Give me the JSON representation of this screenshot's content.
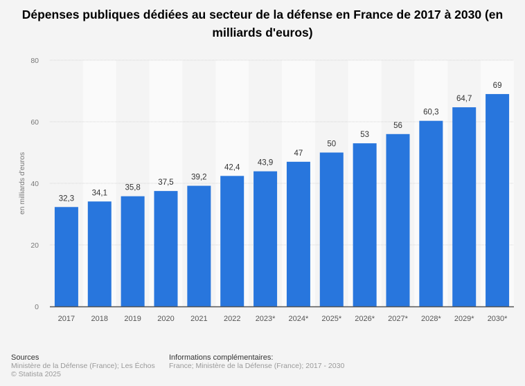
{
  "chart_data": {
    "type": "bar",
    "title": "Dépenses publiques dédiées au secteur de la défense en France de 2017 à 2030 (en milliards d'euros)",
    "xlabel": "",
    "ylabel": "en milliards d'euros",
    "ylim": [
      0,
      80
    ],
    "yticks": [
      0,
      20,
      40,
      60,
      80
    ],
    "grid": true,
    "categories": [
      "2017",
      "2018",
      "2019",
      "2020",
      "2021",
      "2022",
      "2023*",
      "2024*",
      "2025*",
      "2026*",
      "2027*",
      "2028*",
      "2029*",
      "2030*"
    ],
    "values": [
      32.3,
      34.1,
      35.8,
      37.5,
      39.2,
      42.4,
      43.9,
      47,
      50,
      53,
      56,
      60.3,
      64.7,
      69
    ],
    "value_labels": [
      "32,3",
      "34,1",
      "35,8",
      "37,5",
      "39,2",
      "42,4",
      "43,9",
      "47",
      "50",
      "53",
      "56",
      "60,3",
      "64,7",
      "69"
    ],
    "bar_color": "#2876dd"
  },
  "title_line1": "Dépenses publiques dédiées au secteur de la défense en France de 2017 à 2030 (en",
  "title_line2": "milliards d'euros)",
  "footer": {
    "sources_heading": "Sources",
    "sources_text": "Ministère de la Défense (France); Les Échos",
    "copyright": "© Statista 2025",
    "info_heading": "Informations complémentaires:",
    "info_text": "France; Ministère de la Défense (France); 2017 - 2030"
  }
}
